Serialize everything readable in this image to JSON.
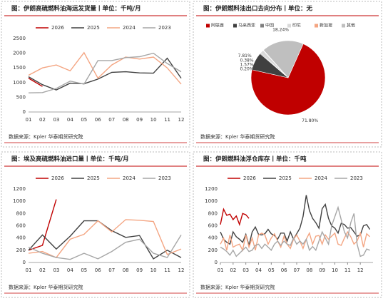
{
  "chart_data": [
    {
      "type": "line",
      "title": "图：伊朗高硫燃料油海运发货量丨单位：千吨/月",
      "source": "数据来源：Kpler 华泰期货研究院",
      "categories": [
        "01",
        "02",
        "03",
        "04",
        "05",
        "06",
        "07",
        "08",
        "09",
        "10",
        "11",
        "12"
      ],
      "ylim": [
        0,
        2500
      ],
      "yticks": [
        0,
        500,
        1000,
        1500,
        2000,
        2500
      ],
      "series": [
        {
          "name": "2026",
          "color": "#c00000",
          "values": [
            1150,
            870,
            null,
            null,
            null,
            null,
            null,
            null,
            null,
            null,
            null,
            null
          ]
        },
        {
          "name": "2025",
          "color": "#404040",
          "values": [
            1200,
            930,
            750,
            980,
            960,
            1120,
            1350,
            1370,
            1330,
            1320,
            1830,
            1150
          ]
        },
        {
          "name": "2024",
          "color": "#f4a582",
          "values": [
            1250,
            1500,
            1600,
            1400,
            2020,
            1150,
            1600,
            1870,
            1800,
            1870,
            1500,
            950
          ]
        },
        {
          "name": "2023",
          "color": "#a6a6a6",
          "values": [
            650,
            660,
            800,
            1050,
            950,
            1750,
            1750,
            1850,
            1880,
            2000,
            1650,
            1370
          ]
        }
      ]
    },
    {
      "type": "pie",
      "title": "图：伊朗燃料油出口去向分布丨单位：无",
      "source": "数据来源：Kpler 华泰期货研究院",
      "categories": [
        "阿联酋",
        "马来西亚",
        "中国",
        "印尼",
        "新加坡",
        "其他"
      ],
      "values": [
        71.8,
        7.81,
        0.38,
        1.57,
        0.2,
        18.24
      ],
      "value_labels": [
        "71.80%",
        "7.81%",
        "0.38%",
        "1.57%",
        "0.20%",
        "18.24%"
      ],
      "colors": [
        "#c00000",
        "#404040",
        "#7f7f7f",
        "#d9d9d9",
        "#f4a582",
        "#bfbfbf"
      ]
    },
    {
      "type": "line",
      "title": "图：埃及高硫燃料油进口量丨单位：千吨/月",
      "source": "数据来源：Kpler 华泰期货研究院",
      "categories": [
        "01",
        "02",
        "03",
        "04",
        "05",
        "06",
        "07",
        "08",
        "09",
        "10",
        "11",
        "12"
      ],
      "ylim": [
        0,
        1200
      ],
      "yticks": [
        0,
        200,
        400,
        600,
        800,
        1000,
        1200
      ],
      "series": [
        {
          "name": "2026",
          "color": "#c00000",
          "values": [
            200,
            280,
            1030,
            null,
            null,
            null,
            null,
            null,
            null,
            null,
            null,
            null
          ]
        },
        {
          "name": "2025",
          "color": "#404040",
          "values": [
            200,
            450,
            220,
            430,
            680,
            680,
            520,
            410,
            440,
            60,
            200,
            80
          ]
        },
        {
          "name": "2024",
          "color": "#f4a582",
          "values": [
            150,
            180,
            80,
            380,
            460,
            680,
            500,
            700,
            690,
            670,
            130,
            220
          ]
        },
        {
          "name": "2023",
          "color": "#a6a6a6",
          "values": [
            250,
            150,
            80,
            50,
            150,
            60,
            180,
            330,
            380,
            150,
            80,
            450
          ]
        }
      ]
    },
    {
      "type": "line",
      "title": "图：伊朗燃料油浮仓库存丨单位：千吨",
      "source": "数据来源：Kpler 华泰期货研究院",
      "x": [
        1,
        1.25,
        1.5,
        1.75,
        2,
        2.25,
        2.5,
        2.75,
        3,
        3.25,
        3.5,
        3.75,
        4,
        4.25,
        4.5,
        4.75,
        5,
        5.25,
        5.5,
        5.75,
        6,
        6.25,
        6.5,
        6.75,
        7,
        7.25,
        7.5,
        7.75,
        8,
        8.25,
        8.5,
        8.75,
        9,
        9.25,
        9.5,
        9.75,
        10,
        10.25,
        10.5,
        10.75,
        11,
        11.25,
        11.5,
        11.75,
        12,
        12.25,
        12.5,
        12.75
      ],
      "xlim": [
        1,
        13
      ],
      "xticks": [
        {
          "value": 1,
          "label": "01"
        },
        {
          "value": 2,
          "label": "02"
        },
        {
          "value": 3,
          "label": "03"
        },
        {
          "value": 4,
          "label": "04"
        },
        {
          "value": 5,
          "label": "05"
        },
        {
          "value": 6,
          "label": "06"
        },
        {
          "value": 7,
          "label": "07"
        },
        {
          "value": 8,
          "label": "08"
        },
        {
          "value": 9,
          "label": "09"
        },
        {
          "value": 10,
          "label": "10"
        },
        {
          "value": 11,
          "label": "11"
        },
        {
          "value": 12,
          "label": "12"
        }
      ],
      "ylim": [
        0,
        1200
      ],
      "yticks": [
        0,
        200,
        400,
        600,
        800,
        1000,
        1200
      ],
      "series": [
        {
          "name": "2026",
          "color": "#c00000",
          "values": [
            620,
            870,
            770,
            790,
            700,
            760,
            620,
            800,
            780,
            720,
            null,
            null,
            null,
            null,
            null,
            null,
            null,
            null,
            null,
            null,
            null,
            null,
            null,
            null,
            null,
            null,
            null,
            null,
            null,
            null,
            null,
            null,
            null,
            null,
            null,
            null,
            null,
            null,
            null,
            null,
            null,
            null,
            null,
            null,
            null,
            null,
            null,
            null
          ]
        },
        {
          "name": "2025",
          "color": "#404040",
          "values": [
            500,
            380,
            330,
            300,
            500,
            420,
            380,
            330,
            460,
            280,
            500,
            580,
            460,
            450,
            470,
            540,
            470,
            440,
            380,
            480,
            480,
            350,
            500,
            380,
            470,
            560,
            750,
            1100,
            850,
            720,
            650,
            560,
            880,
            950,
            720,
            600,
            560,
            480,
            640,
            620,
            560,
            570,
            500,
            430,
            450,
            600,
            620,
            540
          ]
        },
        {
          "name": "2024",
          "color": "#f4a582",
          "values": [
            300,
            400,
            200,
            450,
            250,
            280,
            300,
            200,
            450,
            250,
            400,
            200,
            450,
            480,
            450,
            300,
            400,
            470,
            350,
            250,
            430,
            300,
            230,
            380,
            450,
            350,
            230,
            380,
            480,
            300,
            430,
            440,
            300,
            450,
            380,
            430,
            480,
            300,
            280,
            400,
            500,
            420,
            300,
            350,
            480,
            250,
            470,
            420
          ]
        },
        {
          "name": "2023",
          "color": "#a6a6a6",
          "values": [
            250,
            220,
            180,
            120,
            200,
            100,
            150,
            200,
            250,
            180,
            200,
            280,
            300,
            230,
            300,
            250,
            200,
            300,
            350,
            280,
            350,
            300,
            280,
            400,
            300,
            350,
            300,
            380,
            200,
            260,
            200,
            350,
            500,
            400,
            300,
            600,
            750,
            900,
            700,
            500,
            400,
            650,
            800,
            300,
            100,
            120,
            220,
            200
          ]
        }
      ]
    }
  ]
}
